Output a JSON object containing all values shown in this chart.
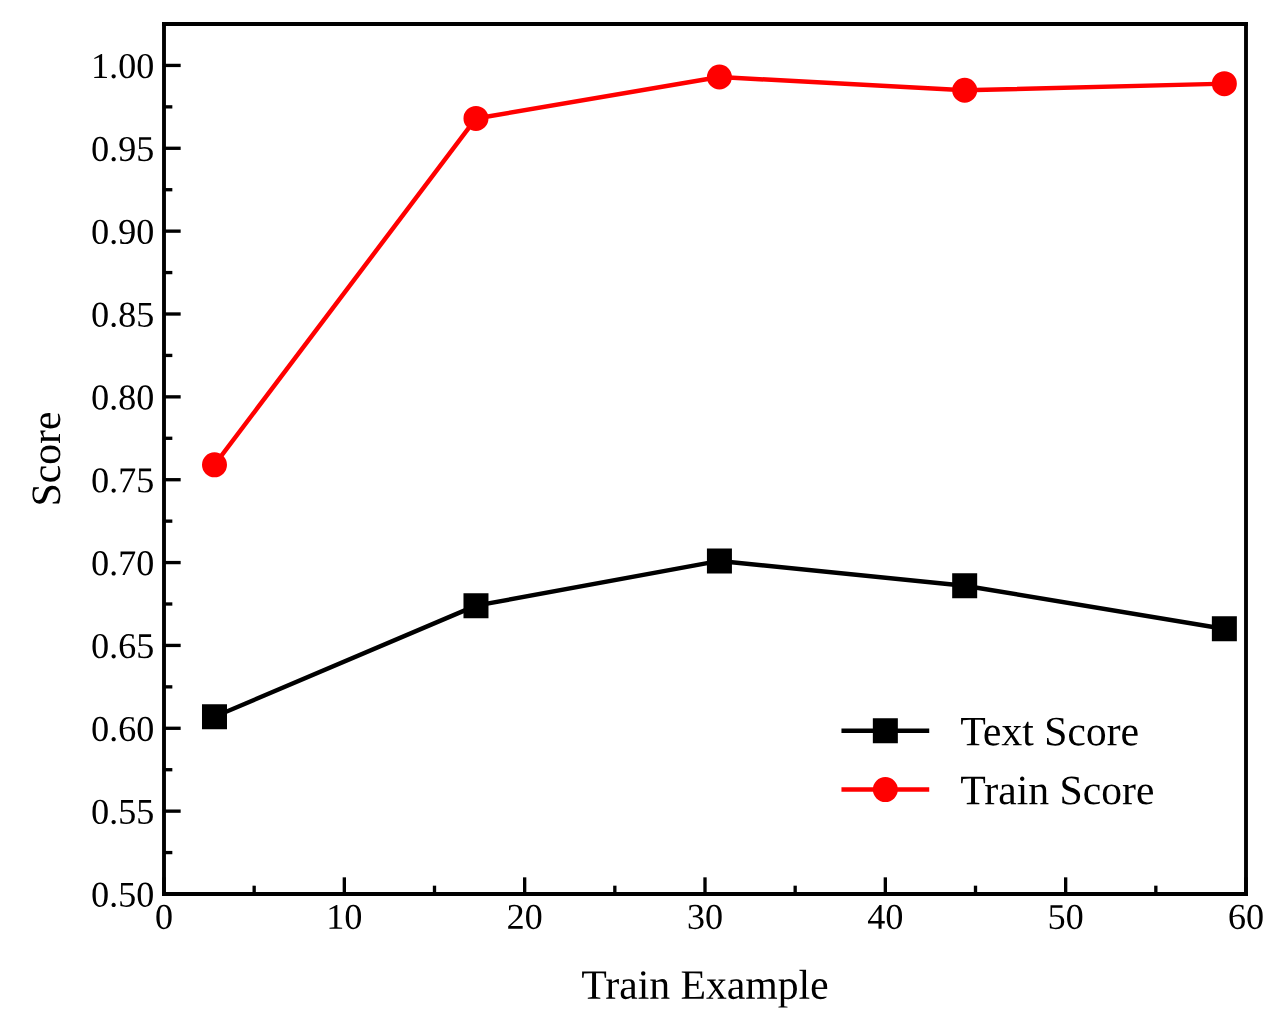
{
  "chart_data": {
    "type": "line",
    "xlabel": "Train Example",
    "ylabel": "Score",
    "x": [
      2.8,
      17.3,
      30.8,
      44.4,
      58.8
    ],
    "series": [
      {
        "name": "Text Score",
        "color": "#000000",
        "marker": "square",
        "values": [
          0.607,
          0.674,
          0.701,
          0.686,
          0.66
        ]
      },
      {
        "name": "Train Score",
        "color": "#ff0000",
        "marker": "circle",
        "values": [
          0.759,
          0.968,
          0.993,
          0.985,
          0.989
        ]
      }
    ],
    "xlim": [
      0,
      60
    ],
    "ylim": [
      0.5,
      1.025
    ],
    "xticks": [
      0,
      {
        "value": 5,
        "label": null
      },
      10,
      {
        "value": 15,
        "label": null
      },
      20,
      {
        "value": 25,
        "label": null
      },
      30,
      {
        "value": 35,
        "label": null
      },
      40,
      {
        "value": 45,
        "label": null
      },
      50,
      {
        "value": 55,
        "label": null
      },
      60
    ],
    "yticks": [
      {
        "value": 0.5,
        "label": "0.50"
      },
      {
        "value": 0.525,
        "label": null
      },
      {
        "value": 0.55,
        "label": "0.55"
      },
      {
        "value": 0.575,
        "label": null
      },
      {
        "value": 0.6,
        "label": "0.60"
      },
      {
        "value": 0.625,
        "label": null
      },
      {
        "value": 0.65,
        "label": "0.65"
      },
      {
        "value": 0.675,
        "label": null
      },
      {
        "value": 0.7,
        "label": "0.70"
      },
      {
        "value": 0.725,
        "label": null
      },
      {
        "value": 0.75,
        "label": "0.75"
      },
      {
        "value": 0.775,
        "label": null
      },
      {
        "value": 0.8,
        "label": "0.80"
      },
      {
        "value": 0.825,
        "label": null
      },
      {
        "value": 0.85,
        "label": "0.85"
      },
      {
        "value": 0.875,
        "label": null
      },
      {
        "value": 0.9,
        "label": "0.90"
      },
      {
        "value": 0.925,
        "label": null
      },
      {
        "value": 0.95,
        "label": "0.95"
      },
      {
        "value": 0.975,
        "label": null
      },
      {
        "value": 1.0,
        "label": "1.00"
      },
      {
        "value": 1.025,
        "label": null
      }
    ],
    "grid": false,
    "legend": "bottom right",
    "line_style": "solid"
  }
}
